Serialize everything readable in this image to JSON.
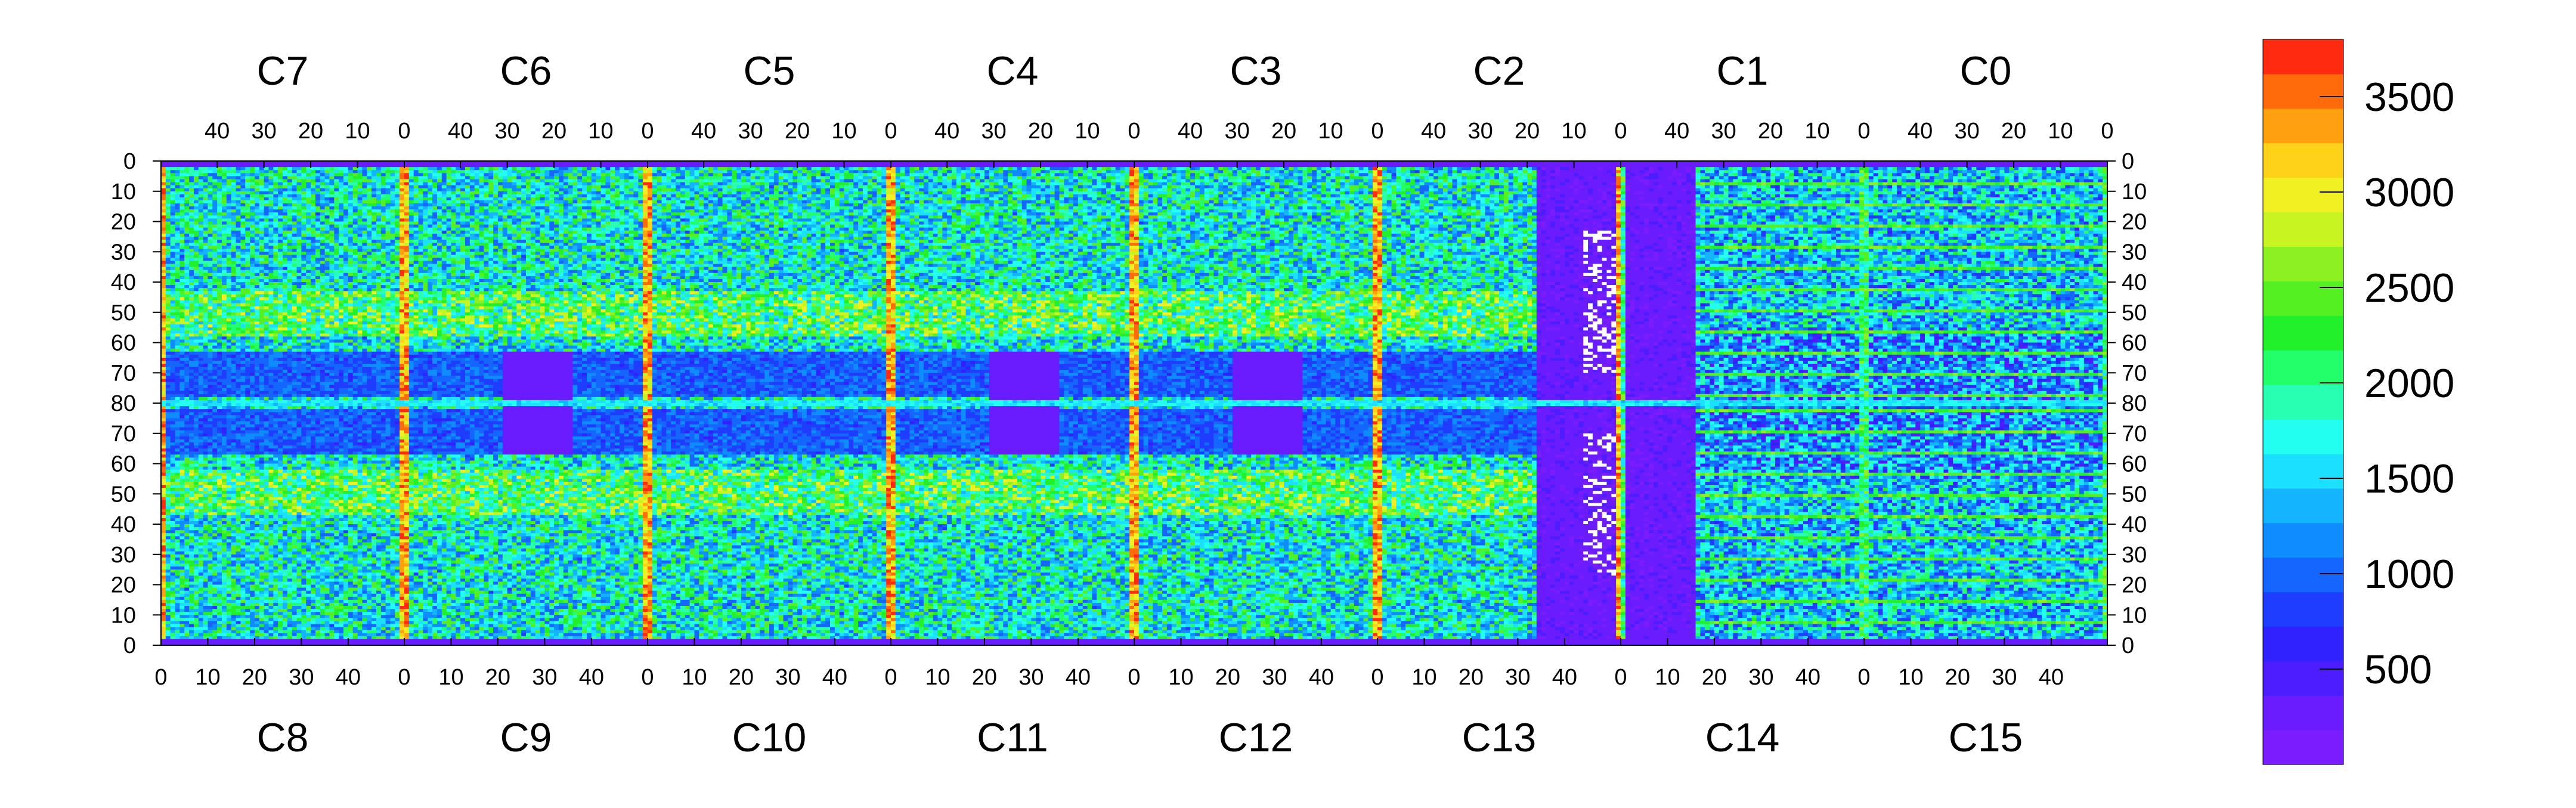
{
  "chart_data": {
    "type": "heatmap",
    "title": "",
    "top_chip_labels": [
      "C7",
      "C6",
      "C5",
      "C4",
      "C3",
      "C2",
      "C1",
      "C0"
    ],
    "bottom_chip_labels": [
      "C8",
      "C9",
      "C10",
      "C11",
      "C12",
      "C13",
      "C14",
      "C15"
    ],
    "top_chip_ticks": [
      [
        "40",
        "30",
        "20",
        "10",
        "0"
      ],
      [
        "40",
        "30",
        "20",
        "10",
        "0"
      ],
      [
        "40",
        "30",
        "20",
        "10",
        "0"
      ],
      [
        "40",
        "30",
        "20",
        "10",
        "0"
      ],
      [
        "40",
        "30",
        "20",
        "10",
        "0"
      ],
      [
        "40",
        "30",
        "20",
        "10",
        "0"
      ],
      [
        "40",
        "30",
        "20",
        "10",
        "0"
      ],
      [
        "40",
        "30",
        "20",
        "10",
        "0"
      ]
    ],
    "bottom_chip_ticks": [
      [
        "0",
        "10",
        "20",
        "30",
        "40"
      ],
      [
        "0",
        "10",
        "20",
        "30",
        "40"
      ],
      [
        "0",
        "10",
        "20",
        "30",
        "40"
      ],
      [
        "0",
        "10",
        "20",
        "30",
        "40"
      ],
      [
        "0",
        "10",
        "20",
        "30",
        "40"
      ],
      [
        "0",
        "10",
        "20",
        "30",
        "40"
      ],
      [
        "0",
        "10",
        "20",
        "30",
        "40"
      ],
      [
        "0",
        "10",
        "20",
        "30",
        "40"
      ]
    ],
    "y_ticks": [
      "0",
      "10",
      "20",
      "30",
      "40",
      "50",
      "60",
      "70",
      "80",
      "70",
      "60",
      "50",
      "40",
      "30",
      "20",
      "10",
      "0"
    ],
    "colorbar": {
      "range": [
        0,
        3800
      ],
      "ticks": [
        "500",
        "1000",
        "1500",
        "2000",
        "2500",
        "3000",
        "3500"
      ],
      "levels": 20,
      "colors": [
        "#7b1cff",
        "#6a1cff",
        "#4d1cff",
        "#2f22ff",
        "#1f3dff",
        "#1466ff",
        "#0f8cff",
        "#14b4ff",
        "#1ce0ff",
        "#22fff0",
        "#28ffb2",
        "#22ff6a",
        "#22f02a",
        "#55f022",
        "#8cf022",
        "#c8f522",
        "#f0f022",
        "#ffd21a",
        "#ffa010",
        "#ff6a0a",
        "#ff2a10"
      ]
    },
    "white_pixel_region_chip": "C13/C2"
  }
}
